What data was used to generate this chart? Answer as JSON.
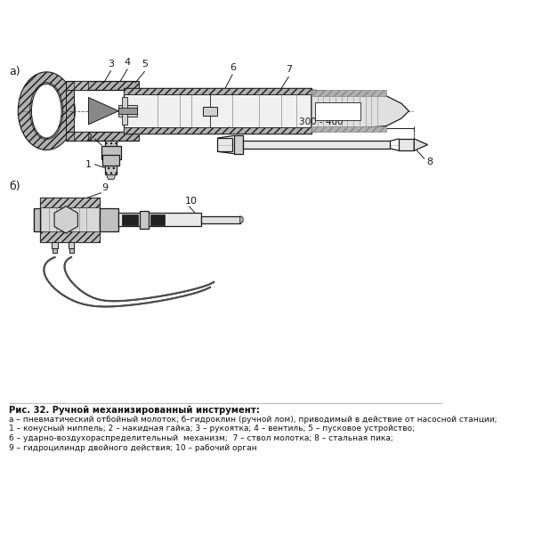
{
  "title": "Рис. 32. Ручной механизированный инструмент:",
  "caption_lines": [
    "а – пневматический отбойный молоток; б–гидроклин (ручной лом), приводимый в действие от насосной станции;",
    "1 – конусный ниппель; 2 – накидная гайка; 3 – рукоятка; 4 – вентиль; 5 – пусковое устройство;",
    "6 – ударно-воздухораспределительный  механизм;  7 – ствол молотка; 8 – стальная пика;",
    "9 – гидроцилиндр двойного действия; 10 – рабочий орган"
  ],
  "line_color": "#1a1a1a",
  "label_a": "а)",
  "label_b": "б)",
  "dim_text": "300 - 400",
  "label_8": "8",
  "label_9": "9",
  "label_10": "10"
}
